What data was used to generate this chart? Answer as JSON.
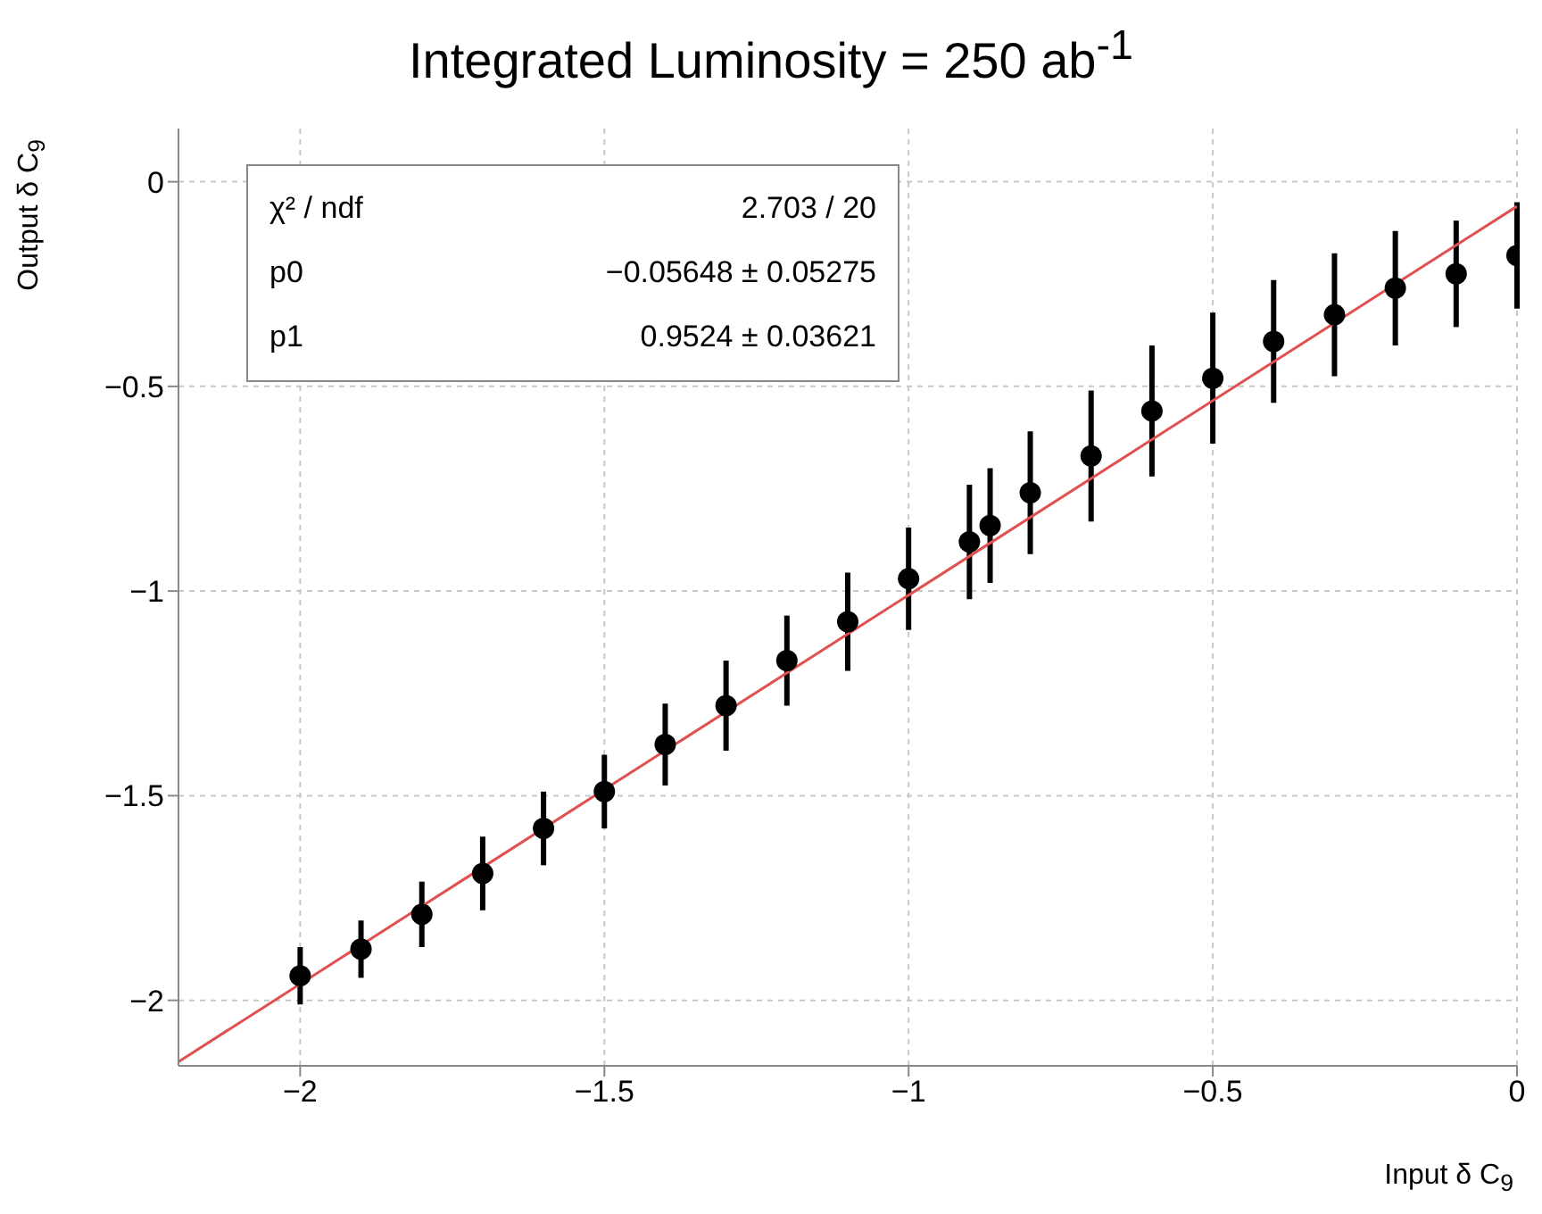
{
  "chart_data": {
    "type": "scatter",
    "title": "Integrated Luminosity = 250 ab$^{-1}$",
    "xlabel": "Input δ C$_{9}$",
    "ylabel": "Output δ C$_{9}$",
    "annotations": [
      "χ² / ndf",
      "2.703 / 20",
      "p0",
      "−0.05648 ± 0.05275",
      "p1",
      "0.9524 ± 0.03621"
    ],
    "xlim": [
      -2.2,
      0
    ],
    "ylim": [
      -2.16,
      0.13
    ],
    "xticks": [
      {
        "value": -2,
        "label": "−2"
      },
      {
        "value": -1.5,
        "label": "−1.5"
      },
      {
        "value": -1,
        "label": "−1"
      },
      {
        "value": -0.5,
        "label": "−0.5"
      },
      {
        "value": 0,
        "label": "0"
      }
    ],
    "yticks": [
      {
        "value": -2,
        "label": "−2"
      },
      {
        "value": -1.5,
        "label": "−1.5"
      },
      {
        "value": -1,
        "label": "−1"
      },
      {
        "value": -0.5,
        "label": "−0.5"
      },
      {
        "value": 0,
        "label": "0"
      }
    ],
    "grid": true,
    "marker": "circle",
    "series": [
      {
        "color": "#000000",
        "x": [
          -2,
          -1.9,
          -1.8,
          -1.7,
          -1.6,
          -1.5,
          -1.4,
          -1.3,
          -1.2,
          -1.1,
          -1,
          -0.9,
          -0.866,
          -0.8,
          -0.7,
          -0.6,
          -0.5,
          -0.4,
          -0.3,
          -0.2,
          -0.1,
          0
        ],
        "values": [
          -1.94,
          -1.875,
          -1.79,
          -1.69,
          -1.58,
          -1.49,
          -1.375,
          -1.28,
          -1.17,
          -1.075,
          -0.97,
          -0.88,
          -0.84,
          -0.76,
          -0.67,
          -0.56,
          -0.48,
          -0.39,
          -0.325,
          -0.26,
          -0.225,
          -0.18
        ],
        "errors": [
          0.07,
          0.07,
          0.08,
          0.09,
          0.09,
          0.09,
          0.1,
          0.11,
          0.11,
          0.12,
          0.125,
          0.14,
          0.14,
          0.15,
          0.16,
          0.16,
          0.16,
          0.15,
          0.15,
          0.14,
          0.13,
          0.13
        ]
      },
      {
        "type": "line",
        "color": "#e05050",
        "marker": "none",
        "x": [
          -2.2,
          0
        ],
        "values": [
          -2.15,
          -0.06
        ]
      }
    ]
  }
}
